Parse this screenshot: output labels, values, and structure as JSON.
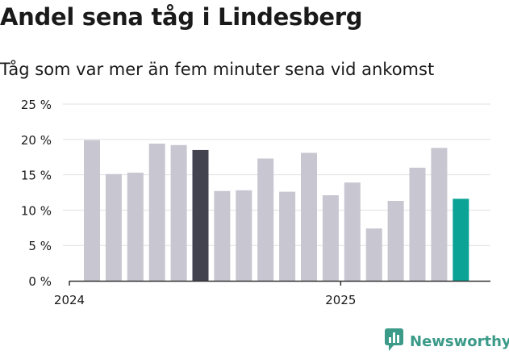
{
  "header": {
    "title": "Andel sena tåg i Lindesberg",
    "subtitle": "Tåg som var mer än fem minuter sena vid ankomst"
  },
  "logo": {
    "text": "Newsworthy",
    "icon": "newsworthy-logo-icon"
  },
  "colors": {
    "default": "#c8c6d0",
    "highlight_dark": "#43424f",
    "highlight_accent": "#0aa396",
    "grid": "#e1e1e1",
    "axis": "#333333",
    "text": "#1a1a1a"
  },
  "chart_data": {
    "type": "bar",
    "title": "Andel sena tåg i Lindesberg",
    "subtitle": "Tåg som var mer än fem minuter sena vid ankomst",
    "categories": [
      "2024-01",
      "2024-02",
      "2024-03",
      "2024-04",
      "2024-05",
      "2024-06",
      "2024-07",
      "2024-08",
      "2024-09",
      "2024-10",
      "2024-11",
      "2024-12",
      "2025-01",
      "2025-02",
      "2025-03",
      "2025-04",
      "2025-05",
      "2025-06"
    ],
    "values": [
      19.9,
      15.1,
      15.3,
      19.4,
      19.2,
      18.5,
      12.7,
      12.8,
      17.3,
      12.6,
      18.1,
      12.1,
      13.9,
      7.4,
      11.3,
      16.0,
      18.8,
      11.6
    ],
    "highlight": {
      "2024-06": "highlight_dark",
      "2025-06": "highlight_accent"
    },
    "ylim": [
      0,
      25
    ],
    "yticks": [
      0,
      5,
      10,
      15,
      20,
      25
    ],
    "ytick_labels": [
      "0 %",
      "5 %",
      "10 %",
      "15 %",
      "20 %",
      "25 %"
    ],
    "xticks": [
      "2024",
      "2025"
    ],
    "grid": true,
    "xlabel": "",
    "ylabel": ""
  }
}
